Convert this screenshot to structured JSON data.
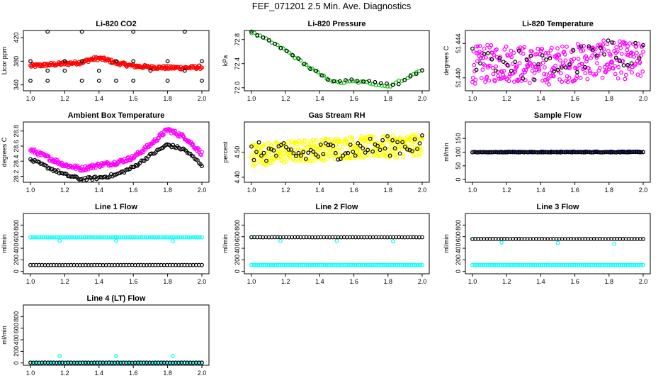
{
  "page_title": "FEF_071201  2.5 Min. Ave. Diagnostics",
  "colors": {
    "red": "#ff0000",
    "black": "#000000",
    "green": "#00c000",
    "magenta": "#ff00ff",
    "yellow": "#ffff00",
    "blue": "#0000ff",
    "cyan": "#00ffff"
  },
  "chart_data": [
    {
      "id": "co2",
      "type": "scatter",
      "title": "Li-820 CO2",
      "ylabel": "Licor ppm",
      "xlim": [
        1.0,
        2.0
      ],
      "ylim": [
        330,
        432
      ],
      "xticks": [
        "1.0",
        "1.2",
        "1.4",
        "1.6",
        "1.8",
        "2.0"
      ],
      "yticks": [
        "340",
        "380",
        "420"
      ],
      "series": [
        {
          "color": "red",
          "points": [
            [
              1.0,
              372
            ],
            [
              1.1,
              374
            ],
            [
              1.2,
              376
            ],
            [
              1.3,
              378
            ],
            [
              1.35,
              383
            ],
            [
              1.4,
              385
            ],
            [
              1.45,
              382
            ],
            [
              1.5,
              377
            ],
            [
              1.6,
              372
            ],
            [
              1.7,
              370
            ],
            [
              1.8,
              369
            ],
            [
              1.9,
              369
            ],
            [
              2.0,
              370
            ]
          ]
        },
        {
          "color": "black",
          "points": [
            [
              1.0,
              347
            ],
            [
              1.0,
              380
            ],
            [
              1.1,
              347
            ],
            [
              1.1,
              364
            ],
            [
              1.1,
              430
            ],
            [
              1.2,
              380
            ],
            [
              1.2,
              364
            ],
            [
              1.3,
              347
            ],
            [
              1.3,
              380
            ],
            [
              1.3,
              430
            ],
            [
              1.4,
              364
            ],
            [
              1.4,
              347
            ],
            [
              1.5,
              380
            ],
            [
              1.5,
              347
            ],
            [
              1.6,
              347
            ],
            [
              1.6,
              380
            ],
            [
              1.6,
              430
            ],
            [
              1.7,
              364
            ],
            [
              1.8,
              380
            ],
            [
              1.8,
              347
            ],
            [
              1.9,
              364
            ],
            [
              1.9,
              430
            ],
            [
              2.0,
              380
            ],
            [
              2.0,
              347
            ]
          ]
        }
      ]
    },
    {
      "id": "pressure",
      "type": "scatter",
      "title": "Li-820 Pressure",
      "ylabel": "kPa",
      "xlim": [
        1.0,
        2.0
      ],
      "ylim": [
        71.95,
        72.95
      ],
      "xticks": [
        "1.0",
        "1.2",
        "1.4",
        "1.6",
        "1.8",
        "2.0"
      ],
      "yticks": [
        "72.0",
        "72.4",
        "72.8"
      ],
      "series": [
        {
          "color": "green",
          "points": [
            [
              1.0,
              72.92
            ],
            [
              1.1,
              72.78
            ],
            [
              1.2,
              72.62
            ],
            [
              1.3,
              72.42
            ],
            [
              1.4,
              72.22
            ],
            [
              1.5,
              72.08
            ],
            [
              1.6,
              72.1
            ],
            [
              1.7,
              72.08
            ],
            [
              1.8,
              72.02
            ],
            [
              1.9,
              72.15
            ],
            [
              2.0,
              72.3
            ]
          ]
        },
        {
          "color": "black",
          "points": [
            [
              1.0,
              72.92
            ],
            [
              1.15,
              72.72
            ],
            [
              1.3,
              72.42
            ],
            [
              1.45,
              72.12
            ],
            [
              1.6,
              72.12
            ],
            [
              1.75,
              72.08
            ],
            [
              1.85,
              72.04
            ],
            [
              2.0,
              72.3
            ]
          ]
        }
      ]
    },
    {
      "id": "temperature",
      "type": "scatter",
      "title": "Li-820 Temperature",
      "ylabel": "degrees C",
      "xlim": [
        1.0,
        2.0
      ],
      "ylim": [
        51.4385,
        51.4455
      ],
      "xticks": [
        "1.0",
        "1.2",
        "1.4",
        "1.6",
        "1.8",
        "2.0"
      ],
      "yticks": [
        "51.440",
        "51.444"
      ],
      "series": [
        {
          "color": "magenta",
          "points": [
            [
              1.0,
              51.4415
            ],
            [
              1.2,
              51.4418
            ],
            [
              1.4,
              51.4413
            ],
            [
              1.6,
              51.4418
            ],
            [
              1.8,
              51.4422
            ],
            [
              2.0,
              51.4418
            ]
          ]
        },
        {
          "color": "black",
          "points": [
            [
              1.1,
              51.4425
            ],
            [
              1.4,
              51.441
            ],
            [
              1.6,
              51.442
            ],
            [
              1.9,
              51.443
            ]
          ]
        }
      ]
    },
    {
      "id": "ambient",
      "type": "scatter",
      "title": "Ambient Box Temperature",
      "ylabel": "degrees C",
      "xlim": [
        1.0,
        2.0
      ],
      "ylim": [
        28.12,
        28.92
      ],
      "xticks": [
        "1.0",
        "1.2",
        "1.4",
        "1.6",
        "1.8",
        "2.0"
      ],
      "yticks": [
        "28.2",
        "28.4",
        "28.6",
        "28.8"
      ],
      "series": [
        {
          "color": "magenta",
          "points": [
            [
              1.0,
              28.55
            ],
            [
              1.1,
              28.45
            ],
            [
              1.2,
              28.35
            ],
            [
              1.3,
              28.3
            ],
            [
              1.4,
              28.35
            ],
            [
              1.5,
              28.38
            ],
            [
              1.6,
              28.45
            ],
            [
              1.7,
              28.62
            ],
            [
              1.8,
              28.82
            ],
            [
              1.9,
              28.72
            ],
            [
              2.0,
              28.5
            ]
          ]
        },
        {
          "color": "black",
          "points": [
            [
              1.0,
              28.42
            ],
            [
              1.1,
              28.32
            ],
            [
              1.2,
              28.22
            ],
            [
              1.3,
              28.16
            ],
            [
              1.4,
              28.18
            ],
            [
              1.5,
              28.22
            ],
            [
              1.6,
              28.32
            ],
            [
              1.7,
              28.48
            ],
            [
              1.8,
              28.62
            ],
            [
              1.9,
              28.55
            ],
            [
              2.0,
              28.35
            ]
          ]
        }
      ]
    },
    {
      "id": "rh",
      "type": "scatter",
      "title": "Gas Stream RH",
      "ylabel": "percent",
      "xlim": [
        1.0,
        2.0
      ],
      "ylim": [
        4.38,
        4.62
      ],
      "xticks": [
        "1.0",
        "1.2",
        "1.4",
        "1.6",
        "1.8",
        "2.0"
      ],
      "yticks": [
        "4.40",
        "4.50"
      ],
      "series": [
        {
          "color": "yellow",
          "points": [
            [
              1.0,
              4.49
            ],
            [
              1.2,
              4.5
            ],
            [
              1.4,
              4.51
            ],
            [
              1.6,
              4.52
            ],
            [
              1.8,
              4.52
            ],
            [
              2.0,
              4.53
            ]
          ]
        },
        {
          "color": "black",
          "points": [
            [
              1.1,
              4.5
            ],
            [
              1.3,
              4.49
            ],
            [
              1.5,
              4.51
            ],
            [
              1.7,
              4.52
            ],
            [
              1.9,
              4.53
            ]
          ]
        }
      ]
    },
    {
      "id": "sample",
      "type": "scatter",
      "title": "Sample Flow",
      "ylabel": "ml/min",
      "xlim": [
        1.0,
        2.0
      ],
      "ylim": [
        -10,
        210
      ],
      "xticks": [
        "1.0",
        "1.2",
        "1.4",
        "1.6",
        "1.8",
        "2.0"
      ],
      "yticks": [
        "0",
        "50",
        "100",
        "150"
      ],
      "series": [
        {
          "color": "blue",
          "points": [
            [
              1.0,
              100
            ],
            [
              1.5,
              101
            ],
            [
              2.0,
              101
            ]
          ]
        },
        {
          "color": "black",
          "points": [
            [
              1.0,
              100
            ],
            [
              1.5,
              100
            ],
            [
              2.0,
              100
            ]
          ]
        }
      ]
    },
    {
      "id": "line1",
      "type": "scatter",
      "title": "Line 1 Flow",
      "ylabel": "ml/min",
      "xlim": [
        1.0,
        2.0
      ],
      "ylim": [
        -40,
        1000
      ],
      "xticks": [
        "1.0",
        "1.2",
        "1.4",
        "1.6",
        "1.8",
        "2.0"
      ],
      "yticks": [
        "0",
        "200",
        "400",
        "600",
        "800"
      ],
      "series": [
        {
          "color": "cyan",
          "points": [
            [
              1.0,
              590
            ],
            [
              2.0,
              590
            ],
            [
              1.17,
              530
            ],
            [
              1.5,
              530
            ],
            [
              1.83,
              520
            ]
          ]
        },
        {
          "color": "black",
          "points": [
            [
              1.0,
              110
            ],
            [
              2.0,
              110
            ]
          ]
        }
      ]
    },
    {
      "id": "line2",
      "type": "scatter",
      "title": "Line 2 Flow",
      "ylabel": "ml/min",
      "xlim": [
        1.0,
        2.0
      ],
      "ylim": [
        -40,
        1000
      ],
      "xticks": [
        "1.0",
        "1.2",
        "1.4",
        "1.6",
        "1.8",
        "2.0"
      ],
      "yticks": [
        "0",
        "200",
        "400",
        "600",
        "800"
      ],
      "series": [
        {
          "color": "cyan",
          "points": [
            [
              1.0,
              110
            ],
            [
              2.0,
              110
            ],
            [
              1.0,
              590
            ],
            [
              1.17,
              530
            ],
            [
              1.5,
              530
            ],
            [
              1.83,
              520
            ]
          ]
        },
        {
          "color": "black",
          "points": [
            [
              1.02,
              590
            ],
            [
              2.0,
              590
            ]
          ]
        }
      ]
    },
    {
      "id": "line3",
      "type": "scatter",
      "title": "Line 3 Flow",
      "ylabel": "ml/min",
      "xlim": [
        1.0,
        2.0
      ],
      "ylim": [
        -40,
        1000
      ],
      "xticks": [
        "1.0",
        "1.2",
        "1.4",
        "1.6",
        "1.8",
        "2.0"
      ],
      "yticks": [
        "0",
        "200",
        "400",
        "600",
        "800"
      ],
      "series": [
        {
          "color": "cyan",
          "points": [
            [
              1.0,
              110
            ],
            [
              2.0,
              110
            ],
            [
              1.0,
              560
            ],
            [
              1.17,
              500
            ],
            [
              1.5,
              490
            ],
            [
              1.83,
              480
            ]
          ]
        },
        {
          "color": "black",
          "points": [
            [
              1.02,
              560
            ],
            [
              2.0,
              560
            ]
          ]
        }
      ]
    },
    {
      "id": "line4",
      "type": "scatter",
      "title": "Line 4 (LT) Flow",
      "ylabel": "ml/min",
      "xlim": [
        1.0,
        2.0
      ],
      "ylim": [
        -40,
        1000
      ],
      "xticks": [
        "1.0",
        "1.2",
        "1.4",
        "1.6",
        "1.8",
        "2.0"
      ],
      "yticks": [
        "0",
        "200",
        "400",
        "600",
        "800"
      ],
      "series": [
        {
          "color": "cyan",
          "points": [
            [
              1.0,
              5
            ],
            [
              2.0,
              5
            ],
            [
              1.17,
              120
            ],
            [
              1.5,
              120
            ],
            [
              1.83,
              120
            ]
          ]
        },
        {
          "color": "black",
          "points": [
            [
              1.0,
              5
            ],
            [
              2.0,
              5
            ]
          ]
        }
      ]
    }
  ]
}
